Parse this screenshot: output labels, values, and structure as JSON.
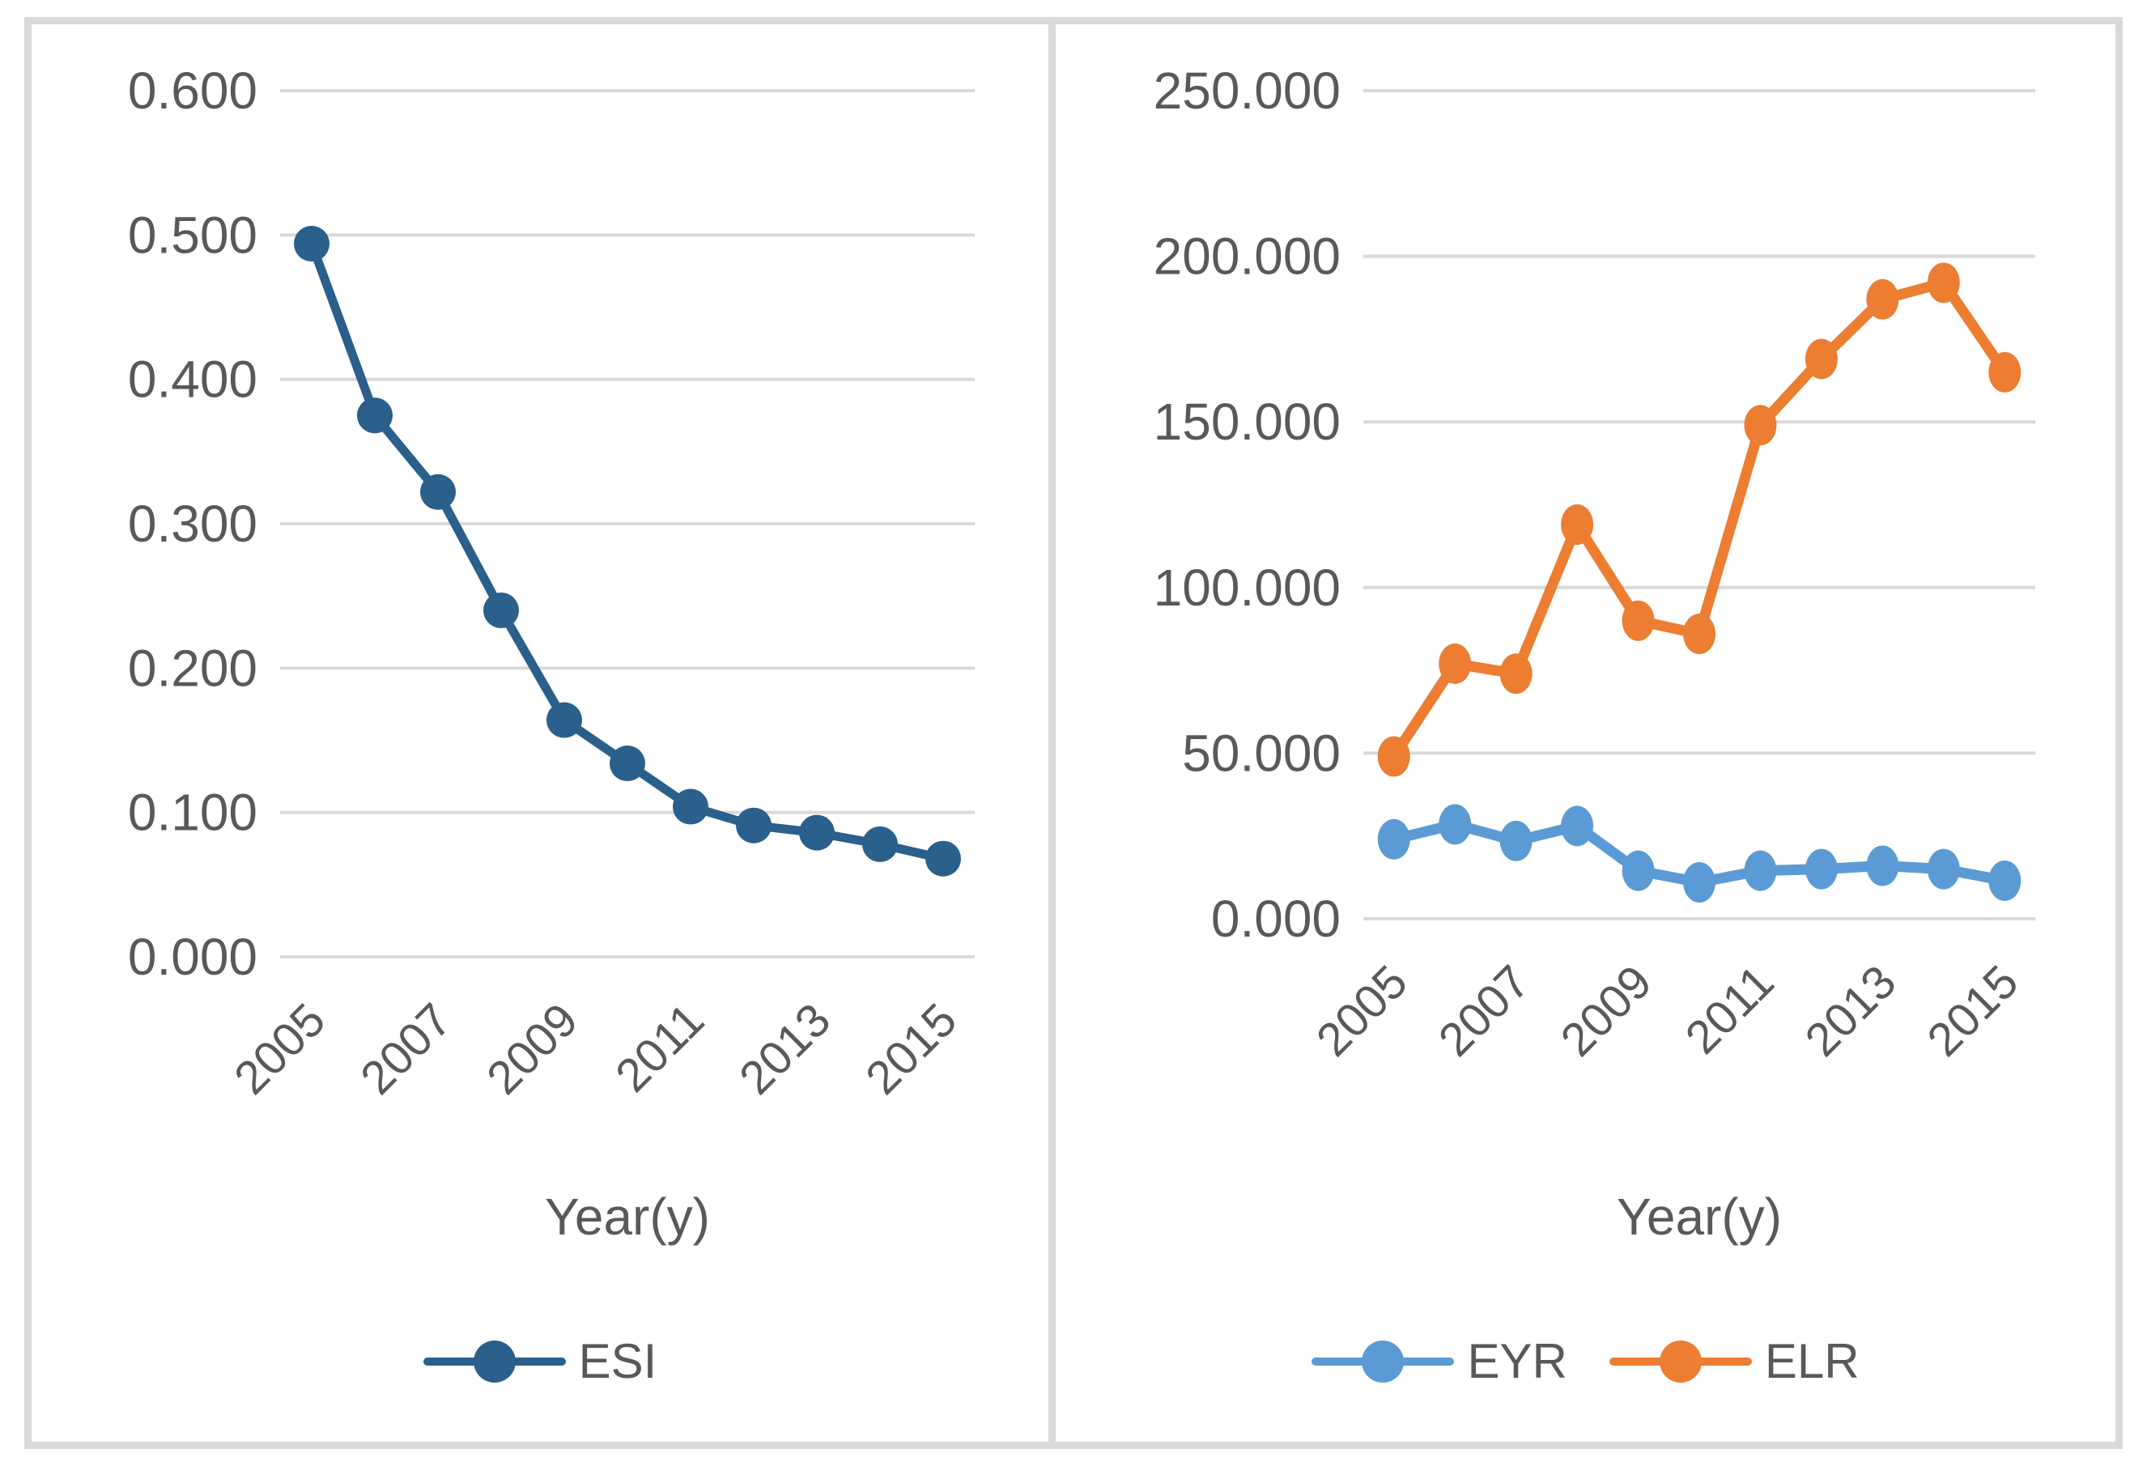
{
  "figure": {
    "background": "#FFFFFF",
    "frame_border_color": "#D9D9D9",
    "gridline_color": "#D9D9D9",
    "text_color": "#595959"
  },
  "chart_data": [
    {
      "type": "line",
      "panel": "left",
      "title": "",
      "xlabel": "Year(y)",
      "ylabel": "",
      "categories": [
        "2005",
        "2006",
        "2007",
        "2008",
        "2009",
        "2010",
        "2011",
        "2012",
        "2013",
        "2014",
        "2015"
      ],
      "x_tick_labels": [
        "2005",
        "2007",
        "2009",
        "2011",
        "2013",
        "2015"
      ],
      "ylim": [
        0,
        0.6
      ],
      "y_tick_labels": [
        "0.000",
        "0.100",
        "0.200",
        "0.300",
        "0.400",
        "0.500",
        "0.600"
      ],
      "grid": true,
      "legend_position": "bottom",
      "series": [
        {
          "name": "ESI",
          "color": "#2B5F8C",
          "values": [
            0.494,
            0.375,
            0.322,
            0.24,
            0.164,
            0.134,
            0.104,
            0.091,
            0.086,
            0.078,
            0.068
          ]
        }
      ]
    },
    {
      "type": "line",
      "panel": "right",
      "title": "",
      "xlabel": "Year(y)",
      "ylabel": "",
      "categories": [
        "2005",
        "2006",
        "2007",
        "2008",
        "2009",
        "2010",
        "2011",
        "2012",
        "2013",
        "2014",
        "2015"
      ],
      "x_tick_labels": [
        "2005",
        "2007",
        "2009",
        "2011",
        "2013",
        "2015"
      ],
      "ylim": [
        0,
        250
      ],
      "y_tick_labels": [
        "0.000",
        "50.000",
        "100.000",
        "150.000",
        "200.000",
        "250.000"
      ],
      "grid": true,
      "legend_position": "bottom",
      "series": [
        {
          "name": "EYR",
          "color": "#5B9BD5",
          "values": [
            24.0,
            28.5,
            23.5,
            28.0,
            14.5,
            11.0,
            14.5,
            15.0,
            16.0,
            15.0,
            11.5
          ]
        },
        {
          "name": "ELR",
          "color": "#ED7D31",
          "values": [
            49,
            77,
            74,
            119,
            90,
            86,
            149,
            169,
            187,
            192,
            165
          ]
        }
      ]
    }
  ]
}
